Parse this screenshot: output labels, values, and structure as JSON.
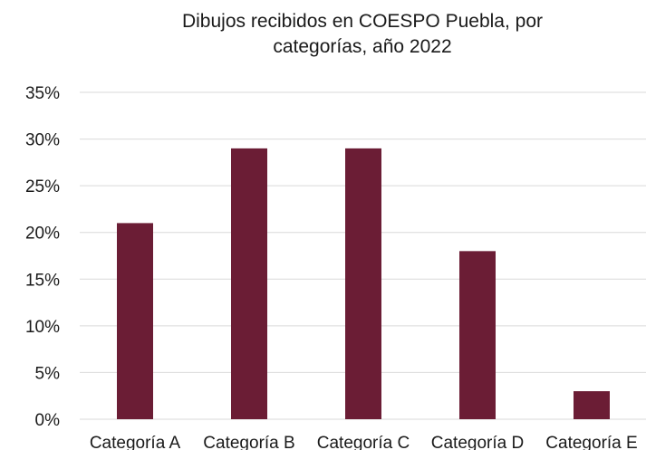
{
  "chart_data": {
    "type": "bar",
    "title_line1": "Dibujos recibidos en COESPO Puebla, por",
    "title_line2": "categorías, año 2022",
    "categories": [
      "Categoría A",
      "Categoría B",
      "Categoría C",
      "Categoría D",
      "Categoría E"
    ],
    "values": [
      0.21,
      0.29,
      0.29,
      0.18,
      0.03
    ],
    "y_ticks": [
      "0%",
      "5%",
      "10%",
      "15%",
      "20%",
      "25%",
      "30%",
      "35%"
    ],
    "ylim": [
      0,
      0.35
    ],
    "xlabel": "",
    "ylabel": "",
    "grid": true,
    "legend": "none",
    "bar_color": "#6b1d35",
    "grid_color": "#d9d9d9"
  }
}
